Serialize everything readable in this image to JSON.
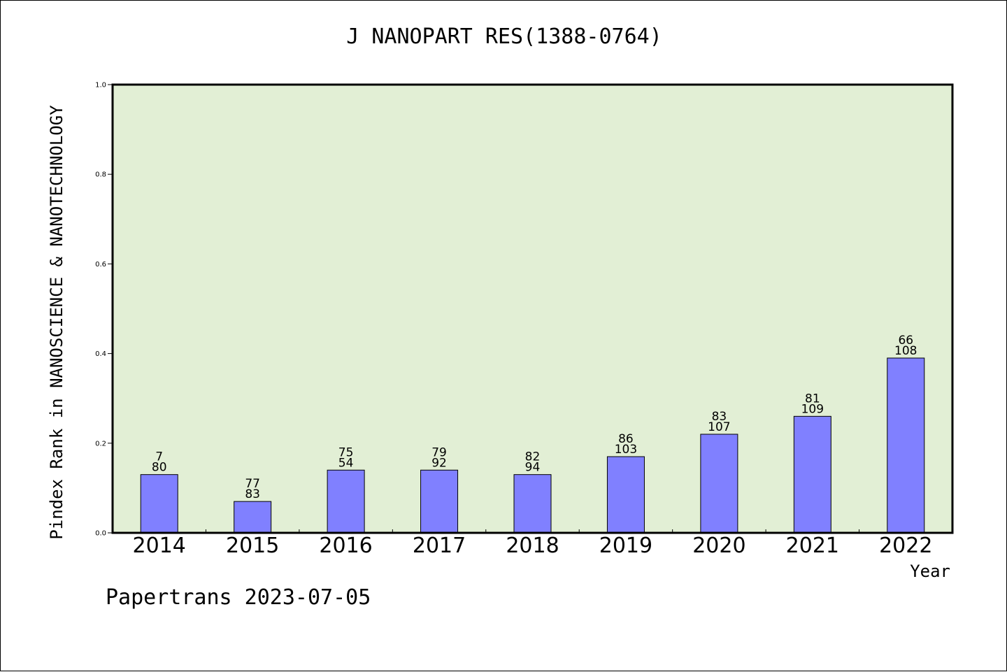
{
  "title": "J NANOPART RES(1388-0764)",
  "footer": "Papertrans 2023-07-05",
  "chart_data": {
    "type": "bar",
    "title": "J NANOPART RES(1388-0764)",
    "xlabel": "Year",
    "ylabel": "Pindex Rank in NANOSCIENCE & NANOTECHNOLOGY",
    "categories": [
      "2014",
      "2015",
      "2016",
      "2017",
      "2018",
      "2019",
      "2020",
      "2021",
      "2022"
    ],
    "values": [
      0.13,
      0.07,
      0.14,
      0.14,
      0.13,
      0.17,
      0.22,
      0.26,
      0.39
    ],
    "label_top": [
      "7",
      "77",
      "75",
      "79",
      "82",
      "86",
      "83",
      "81",
      "66"
    ],
    "label_bottom": [
      "80",
      "83",
      "54",
      "92",
      "94",
      "103",
      "107",
      "109",
      "108"
    ],
    "ylim": [
      0.0,
      1.0
    ],
    "yticks": [
      "0.0",
      "0.2",
      "0.4",
      "0.6",
      "0.8",
      "1.0"
    ],
    "grid": false,
    "colors": {
      "plot_bg": "#e2efd5",
      "bar": "#8080ff",
      "bar_edge": "#000000"
    }
  }
}
